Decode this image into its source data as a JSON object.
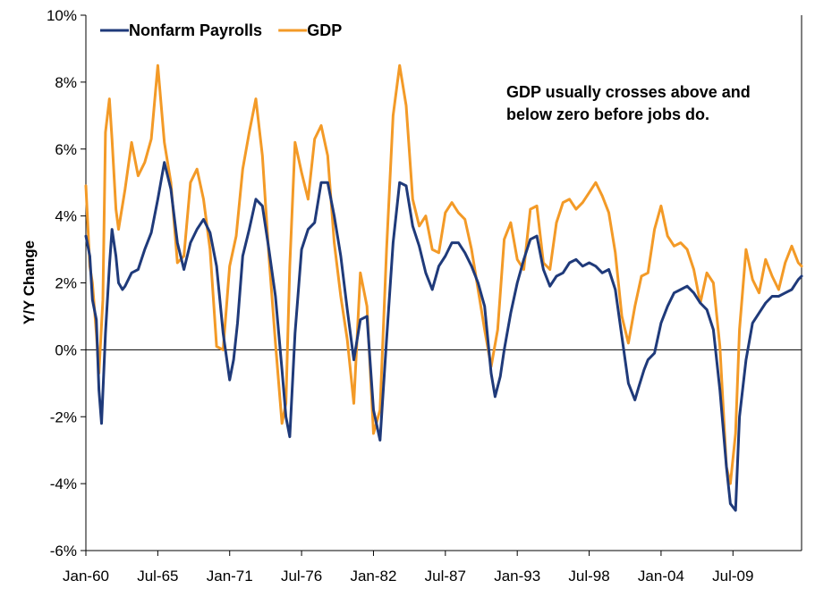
{
  "chart_data": {
    "type": "line",
    "title": "",
    "xlabel": "",
    "ylabel": "Y/Y Change",
    "ylim": [
      -6,
      10
    ],
    "yticks": [
      "10%",
      "8%",
      "6%",
      "4%",
      "2%",
      "0%",
      "-2%",
      "-4%",
      "-6%"
    ],
    "ytick_values": [
      10,
      8,
      6,
      4,
      2,
      0,
      -2,
      -4,
      -6
    ],
    "xlim": [
      1960.0,
      2014.75
    ],
    "xticks": [
      "Jan-60",
      "Jul-65",
      "Jan-71",
      "Jul-76",
      "Jan-82",
      "Jul-87",
      "Jan-93",
      "Jul-98",
      "Jan-04",
      "Jul-09"
    ],
    "xtick_values": [
      1960.0,
      1965.5,
      1971.0,
      1976.5,
      1982.0,
      1987.5,
      1993.0,
      1998.5,
      2004.0,
      2009.5
    ],
    "grid": false,
    "legend_position": "top-left",
    "annotation": [
      "GDP usually crosses above and",
      "below zero before jobs do."
    ],
    "series": [
      {
        "name": "Nonfarm Payrolls",
        "color": "#1f3a7a",
        "x": [
          1960.0,
          1960.3,
          1960.5,
          1960.8,
          1961.0,
          1961.2,
          1961.5,
          1961.8,
          1962.0,
          1962.3,
          1962.5,
          1962.8,
          1963.0,
          1963.5,
          1964.0,
          1964.5,
          1965.0,
          1965.5,
          1966.0,
          1966.5,
          1967.0,
          1967.5,
          1968.0,
          1968.5,
          1969.0,
          1969.5,
          1970.0,
          1970.5,
          1971.0,
          1971.3,
          1971.6,
          1972.0,
          1972.5,
          1973.0,
          1973.5,
          1974.0,
          1974.5,
          1975.0,
          1975.3,
          1975.6,
          1976.0,
          1976.5,
          1977.0,
          1977.5,
          1978.0,
          1978.5,
          1979.0,
          1979.5,
          1980.0,
          1980.5,
          1981.0,
          1981.5,
          1982.0,
          1982.5,
          1983.0,
          1983.5,
          1984.0,
          1984.5,
          1985.0,
          1985.5,
          1986.0,
          1986.5,
          1987.0,
          1987.5,
          1988.0,
          1988.5,
          1989.0,
          1989.5,
          1990.0,
          1990.5,
          1991.0,
          1991.3,
          1991.7,
          1992.0,
          1992.5,
          1993.0,
          1993.5,
          1994.0,
          1994.5,
          1995.0,
          1995.5,
          1996.0,
          1996.5,
          1997.0,
          1997.5,
          1998.0,
          1998.5,
          1999.0,
          1999.5,
          2000.0,
          2000.5,
          2001.0,
          2001.5,
          2002.0,
          2002.3,
          2002.7,
          2003.0,
          2003.5,
          2004.0,
          2004.5,
          2005.0,
          2005.5,
          2006.0,
          2006.5,
          2007.0,
          2007.5,
          2008.0,
          2008.5,
          2009.0,
          2009.3,
          2009.7,
          2010.0,
          2010.5,
          2011.0,
          2011.5,
          2012.0,
          2012.5,
          2013.0,
          2013.5,
          2014.0,
          2014.5,
          2014.75
        ],
        "values": [
          3.4,
          2.8,
          1.5,
          0.9,
          -1.2,
          -2.2,
          0.5,
          2.5,
          3.6,
          2.8,
          2.0,
          1.8,
          1.9,
          2.3,
          2.4,
          3.0,
          3.5,
          4.5,
          5.6,
          4.8,
          3.2,
          2.4,
          3.2,
          3.6,
          3.9,
          3.5,
          2.5,
          0.5,
          -0.9,
          -0.3,
          0.8,
          2.8,
          3.6,
          4.5,
          4.3,
          3.0,
          1.6,
          -0.6,
          -2.0,
          -2.6,
          0.5,
          3.0,
          3.6,
          3.8,
          5.0,
          5.0,
          4.0,
          2.8,
          1.2,
          -0.3,
          0.9,
          1.0,
          -1.8,
          -2.7,
          0.3,
          3.2,
          5.0,
          4.9,
          3.7,
          3.1,
          2.3,
          1.8,
          2.5,
          2.8,
          3.2,
          3.2,
          2.9,
          2.5,
          2.0,
          1.3,
          -0.7,
          -1.4,
          -0.8,
          0.0,
          1.1,
          2.0,
          2.7,
          3.3,
          3.4,
          2.4,
          1.9,
          2.2,
          2.3,
          2.6,
          2.7,
          2.5,
          2.6,
          2.5,
          2.3,
          2.4,
          1.8,
          0.4,
          -1.0,
          -1.5,
          -1.1,
          -0.6,
          -0.3,
          -0.1,
          0.8,
          1.3,
          1.7,
          1.8,
          1.9,
          1.7,
          1.4,
          1.2,
          0.6,
          -1.2,
          -3.5,
          -4.6,
          -4.8,
          -2.0,
          -0.3,
          0.8,
          1.1,
          1.4,
          1.6,
          1.6,
          1.7,
          1.8,
          2.1,
          2.2
        ]
      },
      {
        "name": "GDP",
        "color": "#f39a27",
        "x": [
          1960.0,
          1960.3,
          1960.5,
          1960.8,
          1961.0,
          1961.3,
          1961.5,
          1961.8,
          1962.0,
          1962.3,
          1962.5,
          1963.0,
          1963.5,
          1964.0,
          1964.5,
          1965.0,
          1965.5,
          1966.0,
          1966.5,
          1967.0,
          1967.5,
          1968.0,
          1968.5,
          1969.0,
          1969.5,
          1970.0,
          1970.5,
          1971.0,
          1971.5,
          1972.0,
          1972.5,
          1973.0,
          1973.5,
          1974.0,
          1974.5,
          1975.0,
          1975.3,
          1975.6,
          1976.0,
          1976.5,
          1977.0,
          1977.5,
          1978.0,
          1978.5,
          1979.0,
          1979.5,
          1980.0,
          1980.5,
          1981.0,
          1981.5,
          1982.0,
          1982.5,
          1983.0,
          1983.5,
          1984.0,
          1984.5,
          1985.0,
          1985.5,
          1986.0,
          1986.5,
          1987.0,
          1987.5,
          1988.0,
          1988.5,
          1989.0,
          1989.5,
          1990.0,
          1990.5,
          1991.0,
          1991.5,
          1992.0,
          1992.5,
          1993.0,
          1993.5,
          1994.0,
          1994.5,
          1995.0,
          1995.5,
          1996.0,
          1996.5,
          1997.0,
          1997.5,
          1998.0,
          1998.5,
          1999.0,
          1999.5,
          2000.0,
          2000.5,
          2001.0,
          2001.5,
          2002.0,
          2002.5,
          2003.0,
          2003.5,
          2004.0,
          2004.5,
          2005.0,
          2005.5,
          2006.0,
          2006.5,
          2007.0,
          2007.5,
          2008.0,
          2008.5,
          2009.0,
          2009.3,
          2009.7,
          2010.0,
          2010.5,
          2011.0,
          2011.5,
          2012.0,
          2012.5,
          2013.0,
          2013.5,
          2014.0,
          2014.5,
          2014.75
        ],
        "values": [
          4.9,
          2.5,
          2.0,
          0.5,
          -0.7,
          1.5,
          6.5,
          7.5,
          6.3,
          4.2,
          3.6,
          4.8,
          6.2,
          5.2,
          5.6,
          6.3,
          8.5,
          6.2,
          5.0,
          2.6,
          2.8,
          5.0,
          5.4,
          4.5,
          3.0,
          0.1,
          0.0,
          2.5,
          3.4,
          5.4,
          6.5,
          7.5,
          5.8,
          2.8,
          0.2,
          -2.2,
          -1.6,
          2.5,
          6.2,
          5.3,
          4.5,
          6.3,
          6.7,
          5.8,
          3.2,
          1.6,
          0.3,
          -1.6,
          2.3,
          1.3,
          -2.5,
          -1.8,
          3.0,
          7.0,
          8.5,
          7.3,
          4.5,
          3.7,
          4.0,
          3.0,
          2.9,
          4.1,
          4.4,
          4.1,
          3.9,
          3.0,
          1.8,
          0.6,
          -0.5,
          0.6,
          3.3,
          3.8,
          2.7,
          2.4,
          4.2,
          4.3,
          2.6,
          2.4,
          3.8,
          4.4,
          4.5,
          4.2,
          4.4,
          4.7,
          5.0,
          4.6,
          4.1,
          2.9,
          1.0,
          0.2,
          1.3,
          2.2,
          2.3,
          3.6,
          4.3,
          3.4,
          3.1,
          3.2,
          3.0,
          2.4,
          1.4,
          2.3,
          2.0,
          0.1,
          -3.5,
          -4.0,
          -2.5,
          0.6,
          3.0,
          2.1,
          1.7,
          2.7,
          2.2,
          1.8,
          2.6,
          3.1,
          2.6,
          2.5
        ]
      }
    ]
  }
}
